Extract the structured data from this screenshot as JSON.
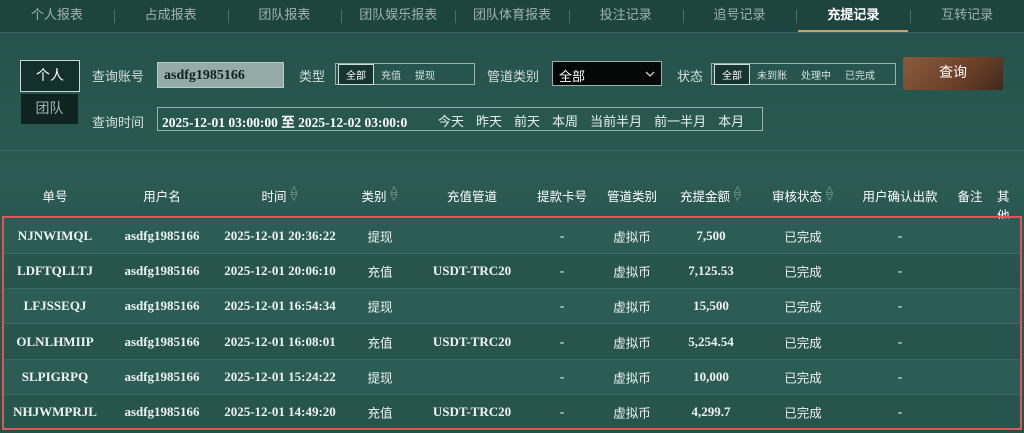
{
  "tabs": {
    "items": [
      "个人报表",
      "占成报表",
      "团队报表",
      "团队娱乐报表",
      "团队体育报表",
      "投注记录",
      "追号记录",
      "充提记录",
      "互转记录"
    ],
    "active": 7
  },
  "filters": {
    "scope": [
      "个人",
      "团队"
    ],
    "account_label": "查询账号",
    "account_value": "asdfg1985166",
    "type_label": "类型",
    "type_options": [
      "全部",
      "充值",
      "提现"
    ],
    "channel_label": "管道类别",
    "channel_value": "全部",
    "status_label": "状态",
    "status_options": [
      "全部",
      "未到账",
      "处理中",
      "已完成"
    ],
    "query_button": "查询",
    "time_label": "查询时间",
    "time_range": "2025-12-01 03:00:00 至 2025-12-02 03:00:0",
    "quick_ranges": [
      "今天",
      "昨天",
      "前天",
      "本周",
      "当前半月",
      "前一半月",
      "本月"
    ]
  },
  "table": {
    "headers": [
      "单号",
      "用户名",
      "时间",
      "类别",
      "充值管道",
      "提款卡号",
      "管道类别",
      "充提金额",
      "审核状态",
      "用户确认出款",
      "备注",
      "其他"
    ],
    "rows": [
      {
        "id": "NJNWIMQL",
        "user": "asdfg1985166",
        "time": "2025-12-01 20:36:22",
        "type": "提现",
        "card": "-",
        "method": "虚拟币",
        "amount": "7,500",
        "status": "已完成",
        "confirm": "-"
      },
      {
        "id": "LDFTQLLTJ",
        "user": "asdfg1985166",
        "time": "2025-12-01 20:06:10",
        "type": "充值",
        "channel": "USDT-TRC20",
        "card": "-",
        "method": "虚拟币",
        "amount": "7,125.53",
        "status": "已完成",
        "confirm": "-"
      },
      {
        "id": "LFJSSEQJ",
        "user": "asdfg1985166",
        "time": "2025-12-01 16:54:34",
        "type": "提现",
        "card": "-",
        "method": "虚拟币",
        "amount": "15,500",
        "status": "已完成",
        "confirm": "-"
      },
      {
        "id": "OLNLHMIIP",
        "user": "asdfg1985166",
        "time": "2025-12-01 16:08:01",
        "type": "充值",
        "channel": "USDT-TRC20",
        "card": "-",
        "method": "虚拟币",
        "amount": "5,254.54",
        "status": "已完成",
        "confirm": "-"
      },
      {
        "id": "SLPIGRPQ",
        "user": "asdfg1985166",
        "time": "2025-12-01 15:24:22",
        "type": "提现",
        "card": "-",
        "method": "虚拟币",
        "amount": "10,000",
        "status": "已完成",
        "confirm": "-"
      },
      {
        "id": "NHJWMPRJL",
        "user": "asdfg1985166",
        "time": "2025-12-01 14:49:20",
        "type": "充值",
        "channel": "USDT-TRC20",
        "card": "-",
        "method": "虚拟币",
        "amount": "4,299.7",
        "status": "已完成",
        "confirm": "-"
      }
    ]
  }
}
